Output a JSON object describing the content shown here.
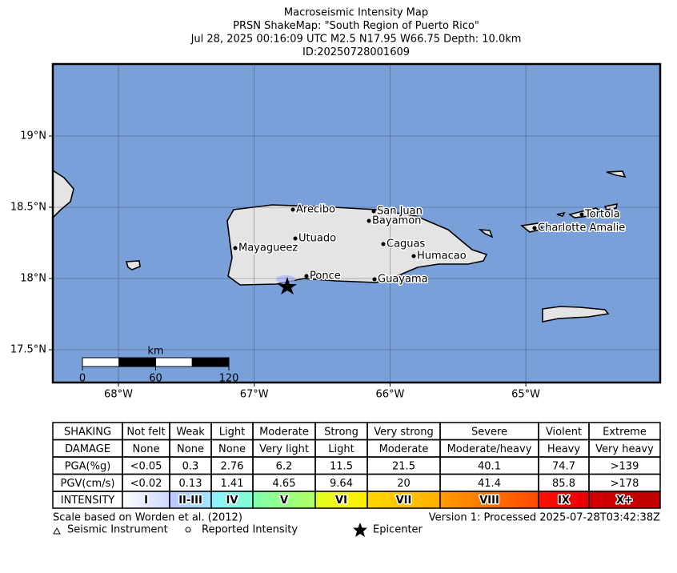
{
  "header": {
    "title": [
      "Macroseismic Intensity Map",
      "PRSN ShakeMap: \"South Region of Puerto Rico\"",
      "Jul 28, 2025 00:16:09 UTC M2.5 N17.95 W66.75 Depth: 10.0km",
      "ID:20250728001609"
    ]
  },
  "map": {
    "lat_ticks": [
      {
        "value": 19,
        "label": "19°N"
      },
      {
        "value": 18.5,
        "label": "18.5°N"
      },
      {
        "value": 18,
        "label": "18°N"
      },
      {
        "value": 17.5,
        "label": "17.5°N"
      }
    ],
    "lon_ticks": [
      {
        "value": -68,
        "label": "68°W"
      },
      {
        "value": -67,
        "label": "67°W"
      },
      {
        "value": -66,
        "label": "66°W"
      },
      {
        "value": -65,
        "label": "65°W"
      }
    ],
    "cities": [
      "Arecibo",
      "San Juan",
      "Bayamon",
      "Utuado",
      "Caguas",
      "Mayagueez",
      "Humacao",
      "Ponce",
      "Guayama",
      "Tortola",
      "Charlotte Amalie"
    ],
    "scale_bar": {
      "unit": "km",
      "ticks": [
        0,
        60,
        120
      ]
    }
  },
  "legend": {
    "rows": [
      [
        "SHAKING",
        "Not felt",
        "Weak",
        "Light",
        "Moderate",
        "Strong",
        "Very strong",
        "Severe",
        "Violent",
        "Extreme"
      ],
      [
        "DAMAGE",
        "None",
        "None",
        "None",
        "Very light",
        "Light",
        "Moderate",
        "Moderate/heavy",
        "Heavy",
        "Very heavy"
      ],
      [
        "PGA(%g)",
        "<0.05",
        "0.3",
        "2.76",
        "6.2",
        "11.5",
        "21.5",
        "40.1",
        "74.7",
        ">139"
      ],
      [
        "PGV(cm/s)",
        "<0.02",
        "0.13",
        "1.41",
        "4.65",
        "9.64",
        "20",
        "41.4",
        "85.8",
        ">178"
      ],
      [
        "INTENSITY",
        "I",
        "II-III",
        "IV",
        "V",
        "VI",
        "VII",
        "VIII",
        "IX",
        "X+"
      ]
    ]
  },
  "footer": {
    "scale_note": "Scale based on Worden et al. (2012)",
    "version": "Version 1: Processed 2025-07-28T03:42:38Z",
    "instrument": "Seismic Instrument",
    "reported": "Reported Intensity",
    "epicenter": "Epicenter"
  }
}
